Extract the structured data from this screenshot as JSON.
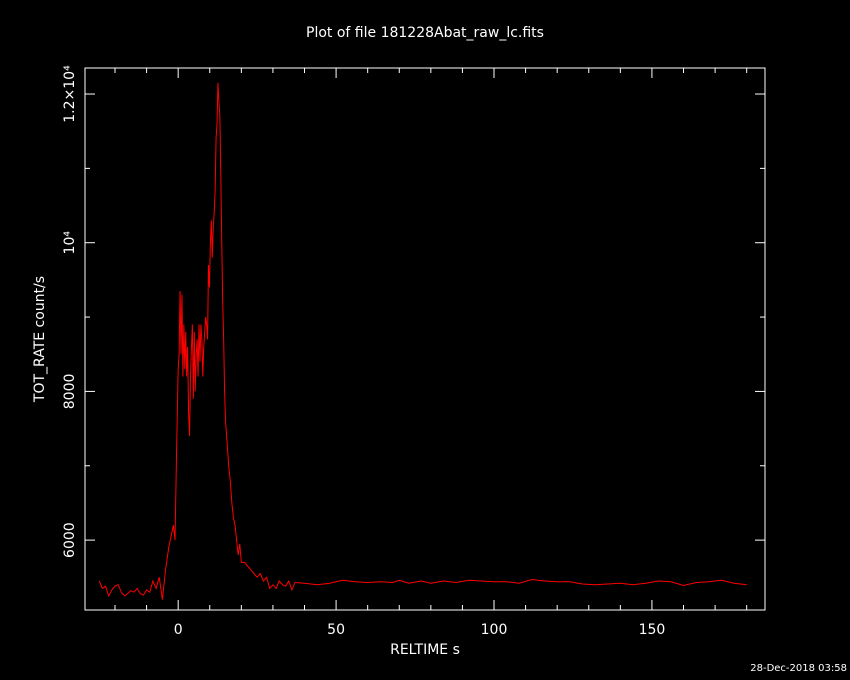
{
  "chart_data": {
    "type": "line",
    "title": "Plot of file 181228Abat_raw_lc.fits",
    "xlabel": "RELTIME  s",
    "ylabel": "TOT_RATE  count/s",
    "timestamp": "28-Dec-2018 03:58",
    "color": "#ff0000",
    "xlim": [
      -29.5,
      185.8
    ],
    "ylim": [
      5060,
      12350
    ],
    "xticks": [
      0,
      50,
      100,
      150
    ],
    "xminorticks": [
      -20,
      -10,
      10,
      20,
      30,
      40,
      60,
      70,
      80,
      90,
      110,
      120,
      130,
      140,
      160,
      170,
      180
    ],
    "yticks": [
      6000,
      8000,
      {
        "value": 10000,
        "label": "10⁴"
      },
      {
        "value": 12000,
        "label": "1.2×10⁴"
      }
    ],
    "yminorticks": [
      7000,
      9000,
      11000
    ],
    "x": [
      -25,
      -24,
      -23,
      -22,
      -21,
      -20,
      -19,
      -18,
      -17,
      -16,
      -15,
      -14,
      -13,
      -12,
      -11,
      -10,
      -9,
      -8,
      -7,
      -6,
      -5,
      -4,
      -3,
      -2,
      -1.5,
      -1,
      -0.5,
      0,
      0.3,
      0.6,
      0.9,
      1.2,
      1.5,
      1.8,
      2.1,
      2.4,
      2.7,
      3,
      3.3,
      3.6,
      3.9,
      4.2,
      4.5,
      4.8,
      5.1,
      5.4,
      5.7,
      6,
      6.3,
      6.6,
      6.9,
      7.2,
      7.5,
      7.8,
      8.1,
      8.4,
      8.7,
      9,
      9.3,
      9.6,
      9.9,
      10.2,
      10.5,
      10.8,
      11.1,
      11.4,
      11.7,
      12,
      12.3,
      12.6,
      12.9,
      13.2,
      13.5,
      13.8,
      14.1,
      14.4,
      14.7,
      15,
      15.5,
      16,
      16.5,
      17,
      17.5,
      18,
      18.5,
      19,
      19.5,
      20,
      21,
      22,
      23,
      24,
      25,
      26,
      27,
      28,
      29,
      30,
      31,
      32,
      33,
      34,
      35,
      36,
      37,
      40,
      44,
      48,
      52,
      56,
      60,
      64,
      68,
      70,
      73,
      77,
      80,
      84,
      88,
      92,
      96,
      100,
      104,
      108,
      112,
      116,
      120,
      124,
      128,
      132,
      136,
      140,
      144,
      148,
      152,
      156,
      160,
      164,
      168,
      172,
      176,
      180
    ],
    "values": [
      5450,
      5350,
      5380,
      5250,
      5330,
      5380,
      5400,
      5300,
      5250,
      5280,
      5320,
      5300,
      5350,
      5280,
      5260,
      5330,
      5300,
      5450,
      5350,
      5500,
      5200,
      5600,
      5900,
      6100,
      6200,
      6000,
      7200,
      8300,
      8500,
      9350,
      8500,
      9300,
      8200,
      8900,
      8300,
      8800,
      8200,
      8600,
      7700,
      7400,
      8200,
      8600,
      8900,
      7900,
      8800,
      8000,
      8500,
      8700,
      8200,
      8900,
      8400,
      8900,
      8700,
      8200,
      8600,
      8800,
      9000,
      8900,
      8700,
      9700,
      9400,
      10000,
      10300,
      9800,
      10200,
      10400,
      10700,
      11400,
      11600,
      12150,
      11900,
      11700,
      10900,
      10000,
      9200,
      8700,
      8000,
      7600,
      7300,
      7000,
      6800,
      6500,
      6300,
      6200,
      6000,
      5800,
      5950,
      5700,
      5700,
      5650,
      5600,
      5550,
      5500,
      5550,
      5450,
      5500,
      5350,
      5400,
      5350,
      5450,
      5400,
      5380,
      5450,
      5330,
      5430,
      5420,
      5400,
      5420,
      5460,
      5440,
      5430,
      5440,
      5430,
      5460,
      5420,
      5450,
      5420,
      5450,
      5430,
      5460,
      5450,
      5440,
      5440,
      5420,
      5470,
      5450,
      5440,
      5440,
      5410,
      5400,
      5410,
      5420,
      5400,
      5420,
      5450,
      5440,
      5390,
      5430,
      5440,
      5460,
      5420,
      5400
    ]
  }
}
